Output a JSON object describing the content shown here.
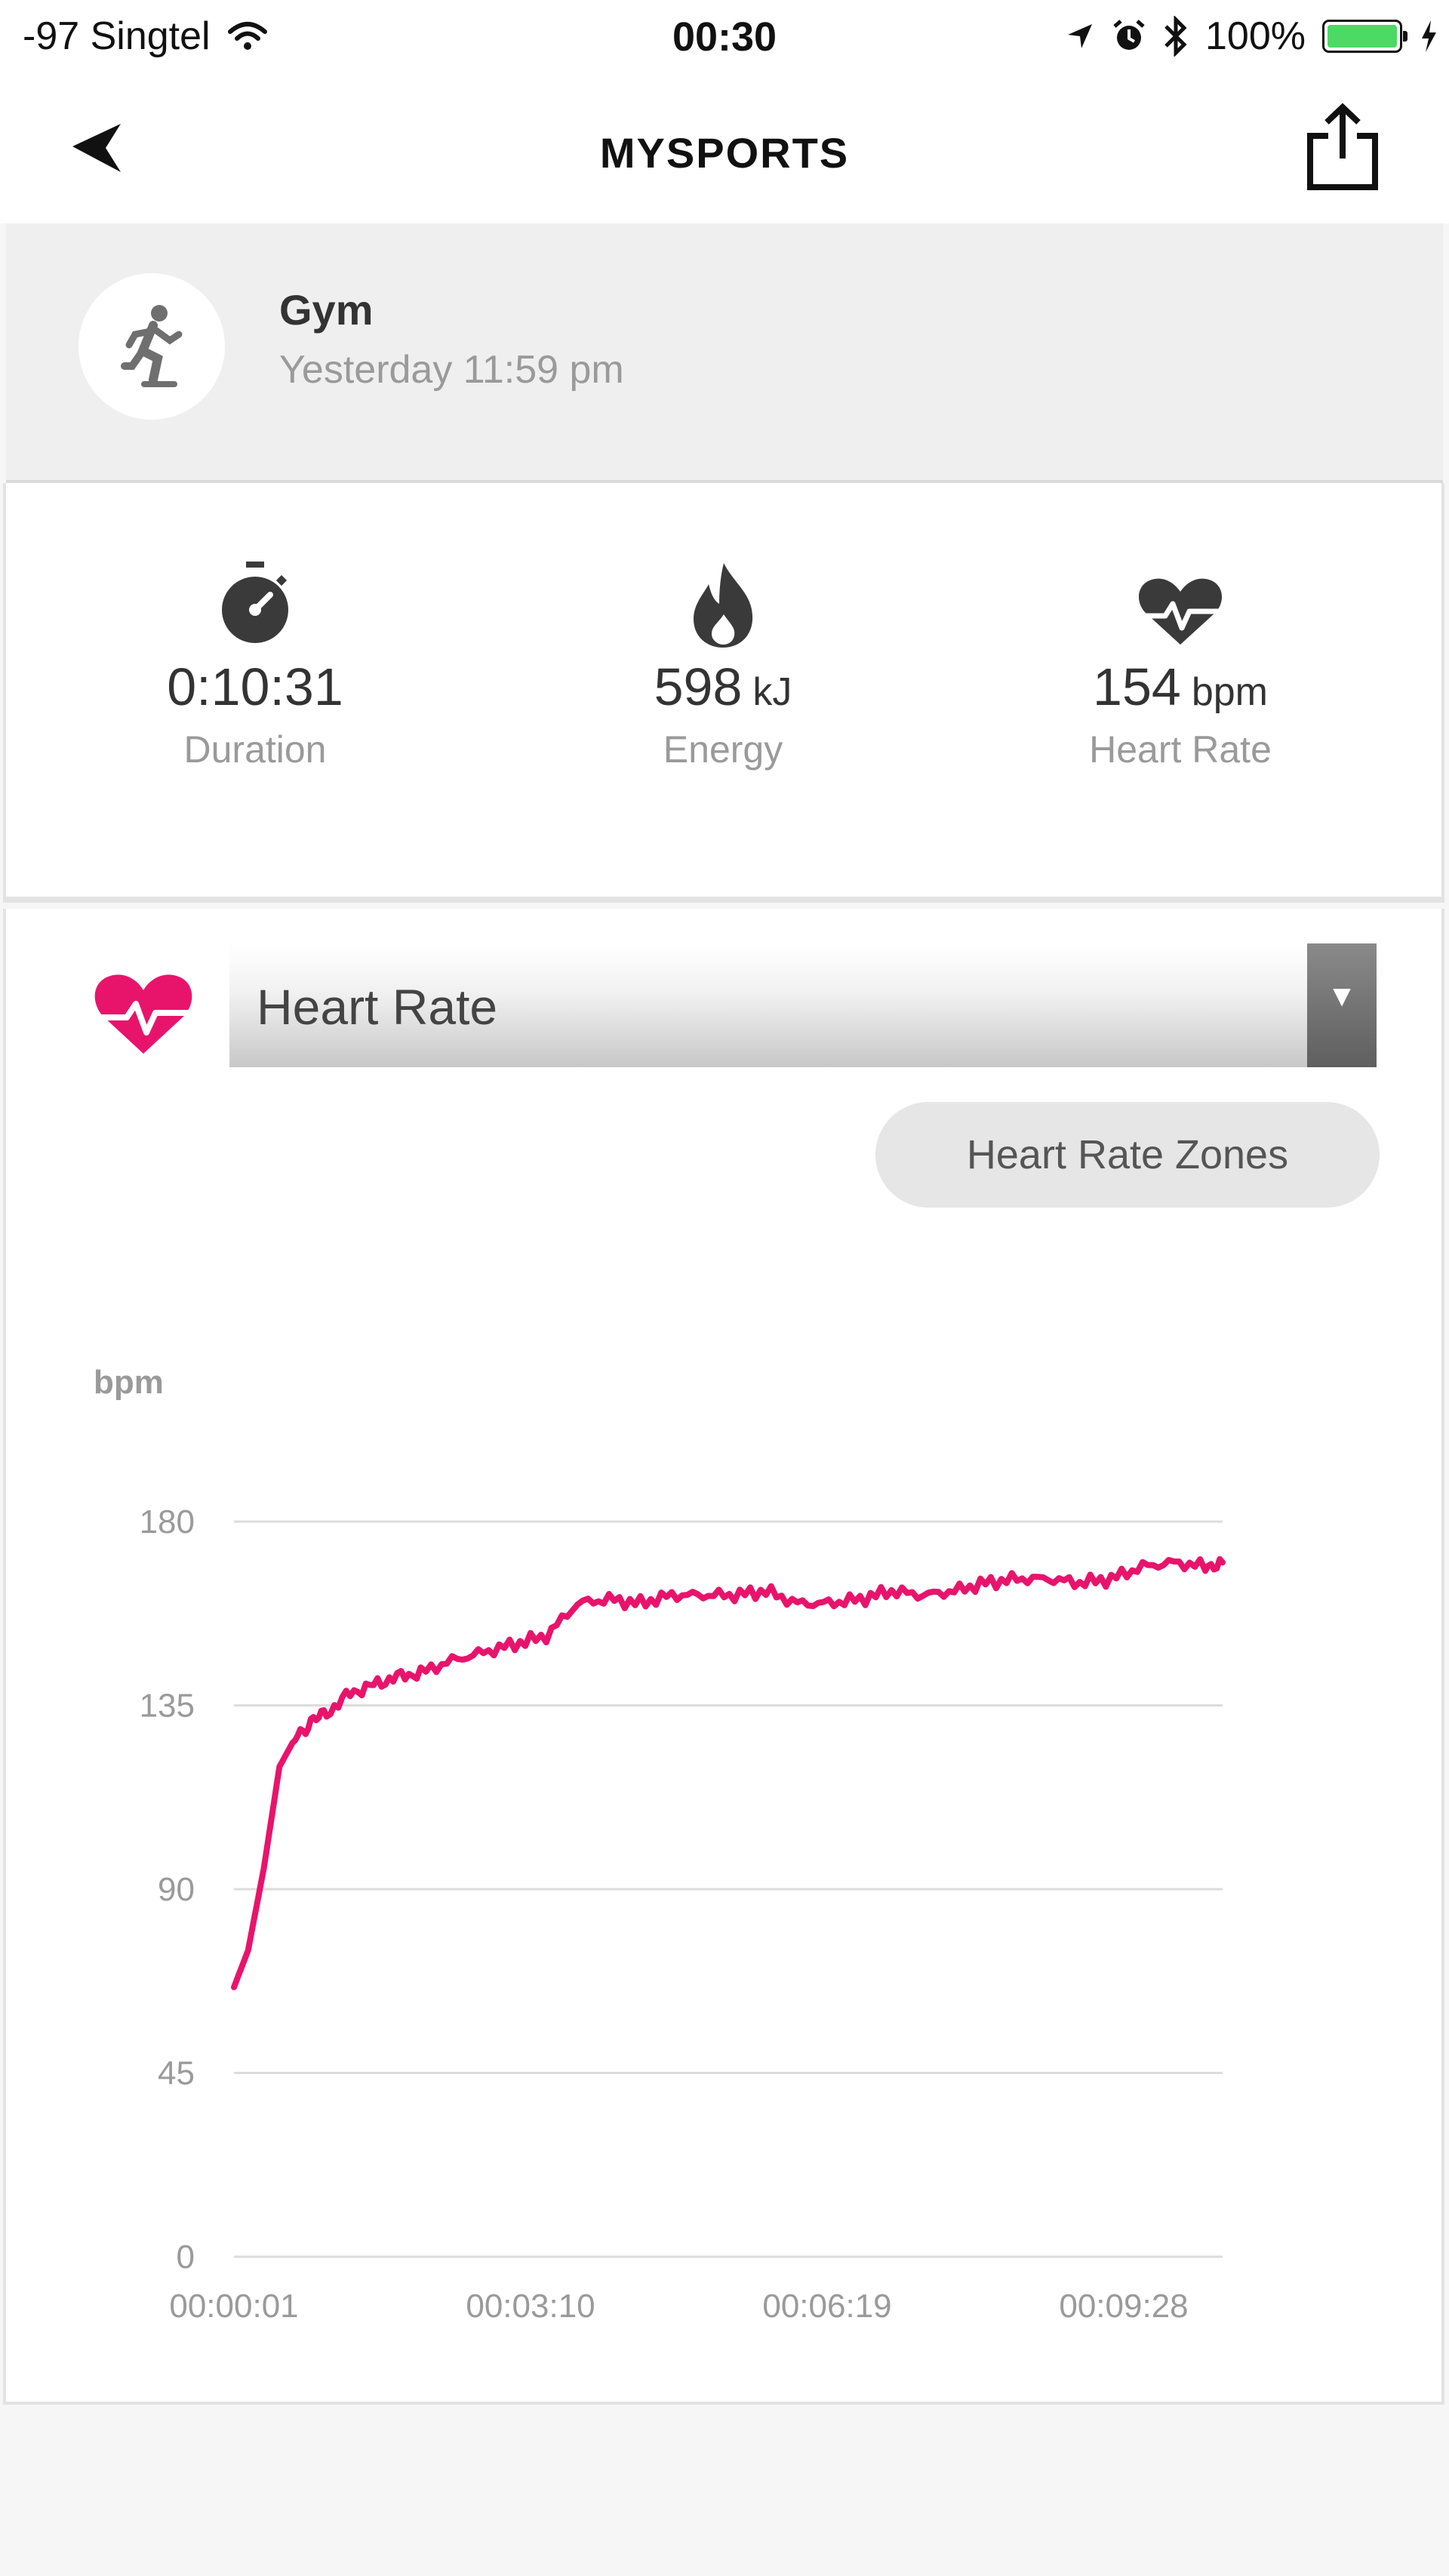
{
  "status_bar": {
    "carrier": "-97 Singtel",
    "time": "00:30",
    "battery": "100%",
    "icons": [
      "wifi-icon",
      "location-arrow-icon",
      "alarm-icon",
      "bluetooth-icon",
      "battery-icon",
      "charging-bolt-icon"
    ]
  },
  "nav": {
    "title": "MYSPORTS",
    "back_icon": "back-arrow-icon",
    "share_icon": "share-icon"
  },
  "activity": {
    "name": "Gym",
    "time": "Yesterday 11:59 pm",
    "icon": "gym-runner-icon"
  },
  "stats": [
    {
      "icon": "stopwatch-icon",
      "value": "0:10:31",
      "unit": "",
      "label": "Duration"
    },
    {
      "icon": "flame-icon",
      "value": "598",
      "unit": "kJ",
      "label": "Energy"
    },
    {
      "icon": "heart-pulse-icon",
      "value": "154",
      "unit": "bpm",
      "label": "Heart Rate"
    }
  ],
  "metric_selector": {
    "selected": "Heart Rate",
    "arrow": "▼"
  },
  "zones_button": "Heart Rate Zones",
  "colors": {
    "accent": "#e8146c",
    "icon_dark": "#3a3a3a",
    "muted_text": "#9a9a9a"
  },
  "chart_data": {
    "type": "line",
    "ylabel": "bpm",
    "ylim": [
      0,
      180
    ],
    "yticks": [
      "180",
      "135",
      "90",
      "45",
      "0"
    ],
    "xticks": [
      "00:00:01",
      "00:03:10",
      "00:06:19",
      "00:09:28"
    ],
    "grid": true,
    "series": [
      {
        "color": "#e8146c",
        "x": [
          1,
          10,
          20,
          30,
          40,
          50,
          60,
          75,
          90,
          105,
          120,
          140,
          160,
          180,
          200,
          220,
          240,
          260,
          280,
          300,
          320,
          340,
          360,
          380,
          400,
          420,
          440,
          460,
          480,
          500,
          520,
          540,
          560,
          580,
          600,
          620,
          631
        ],
        "y": [
          66,
          75,
          95,
          120,
          127,
          131,
          133,
          138,
          140,
          142,
          143,
          146,
          148,
          150,
          152,
          160,
          161,
          160,
          162,
          162,
          162,
          163,
          160,
          160,
          161,
          163,
          162,
          163,
          165,
          166,
          166,
          165,
          166,
          169,
          170,
          169,
          170
        ]
      }
    ]
  }
}
